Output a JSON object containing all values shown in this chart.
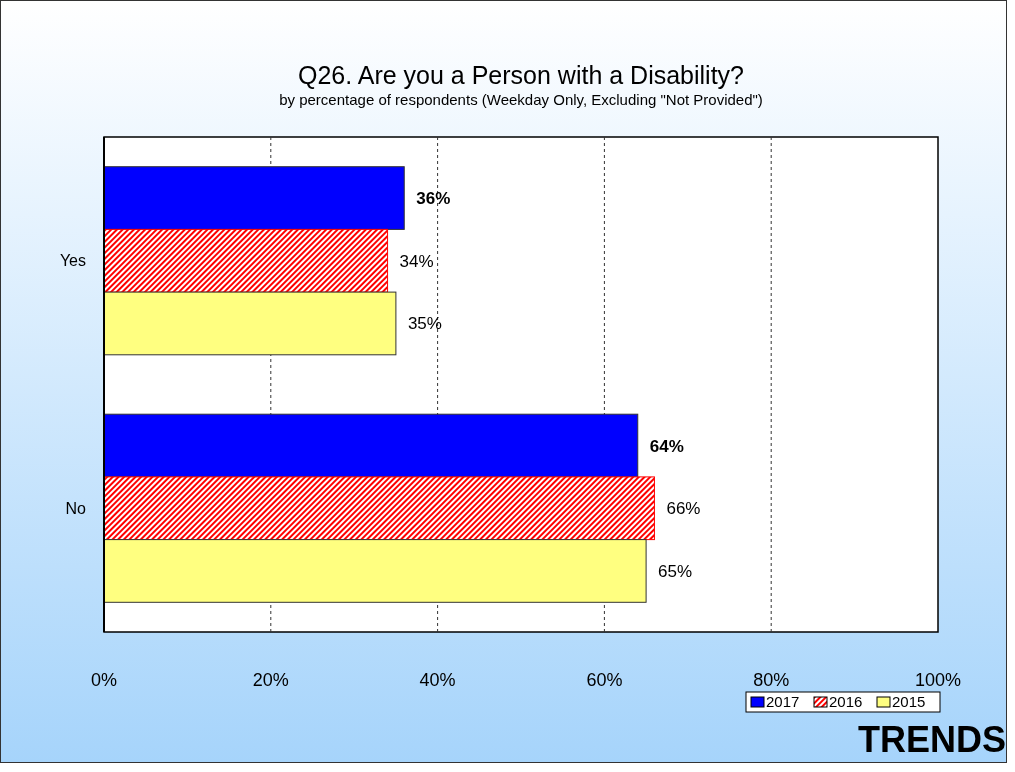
{
  "chart_data": {
    "type": "bar",
    "orientation": "horizontal",
    "title": "Q26. Are you a Person with a Disability?",
    "subtitle": "by percentage of respondents (Weekday Only, Excluding \"Not Provided\")",
    "categories": [
      "Yes",
      "No"
    ],
    "series": [
      {
        "name": "2017",
        "color": "#0000ff",
        "values": [
          36,
          64
        ],
        "value_labels": [
          "36%",
          "64%"
        ]
      },
      {
        "name": "2016",
        "color": "#ff0000",
        "values": [
          34,
          66
        ],
        "value_labels": [
          "34%",
          "66%"
        ]
      },
      {
        "name": "2015",
        "color": "#ffff80",
        "values": [
          35,
          65
        ],
        "value_labels": [
          "35%",
          "65%"
        ]
      }
    ],
    "xlim": [
      0,
      100
    ],
    "xticks": [
      {
        "value": 0,
        "label": "0%"
      },
      {
        "value": 20,
        "label": "20%"
      },
      {
        "value": 40,
        "label": "40%"
      },
      {
        "value": 60,
        "label": "60%"
      },
      {
        "value": 80,
        "label": "80%"
      },
      {
        "value": 100,
        "label": "100%"
      }
    ],
    "grid": "x",
    "legend": "bottom right",
    "annotations": [
      "TRENDS"
    ]
  }
}
